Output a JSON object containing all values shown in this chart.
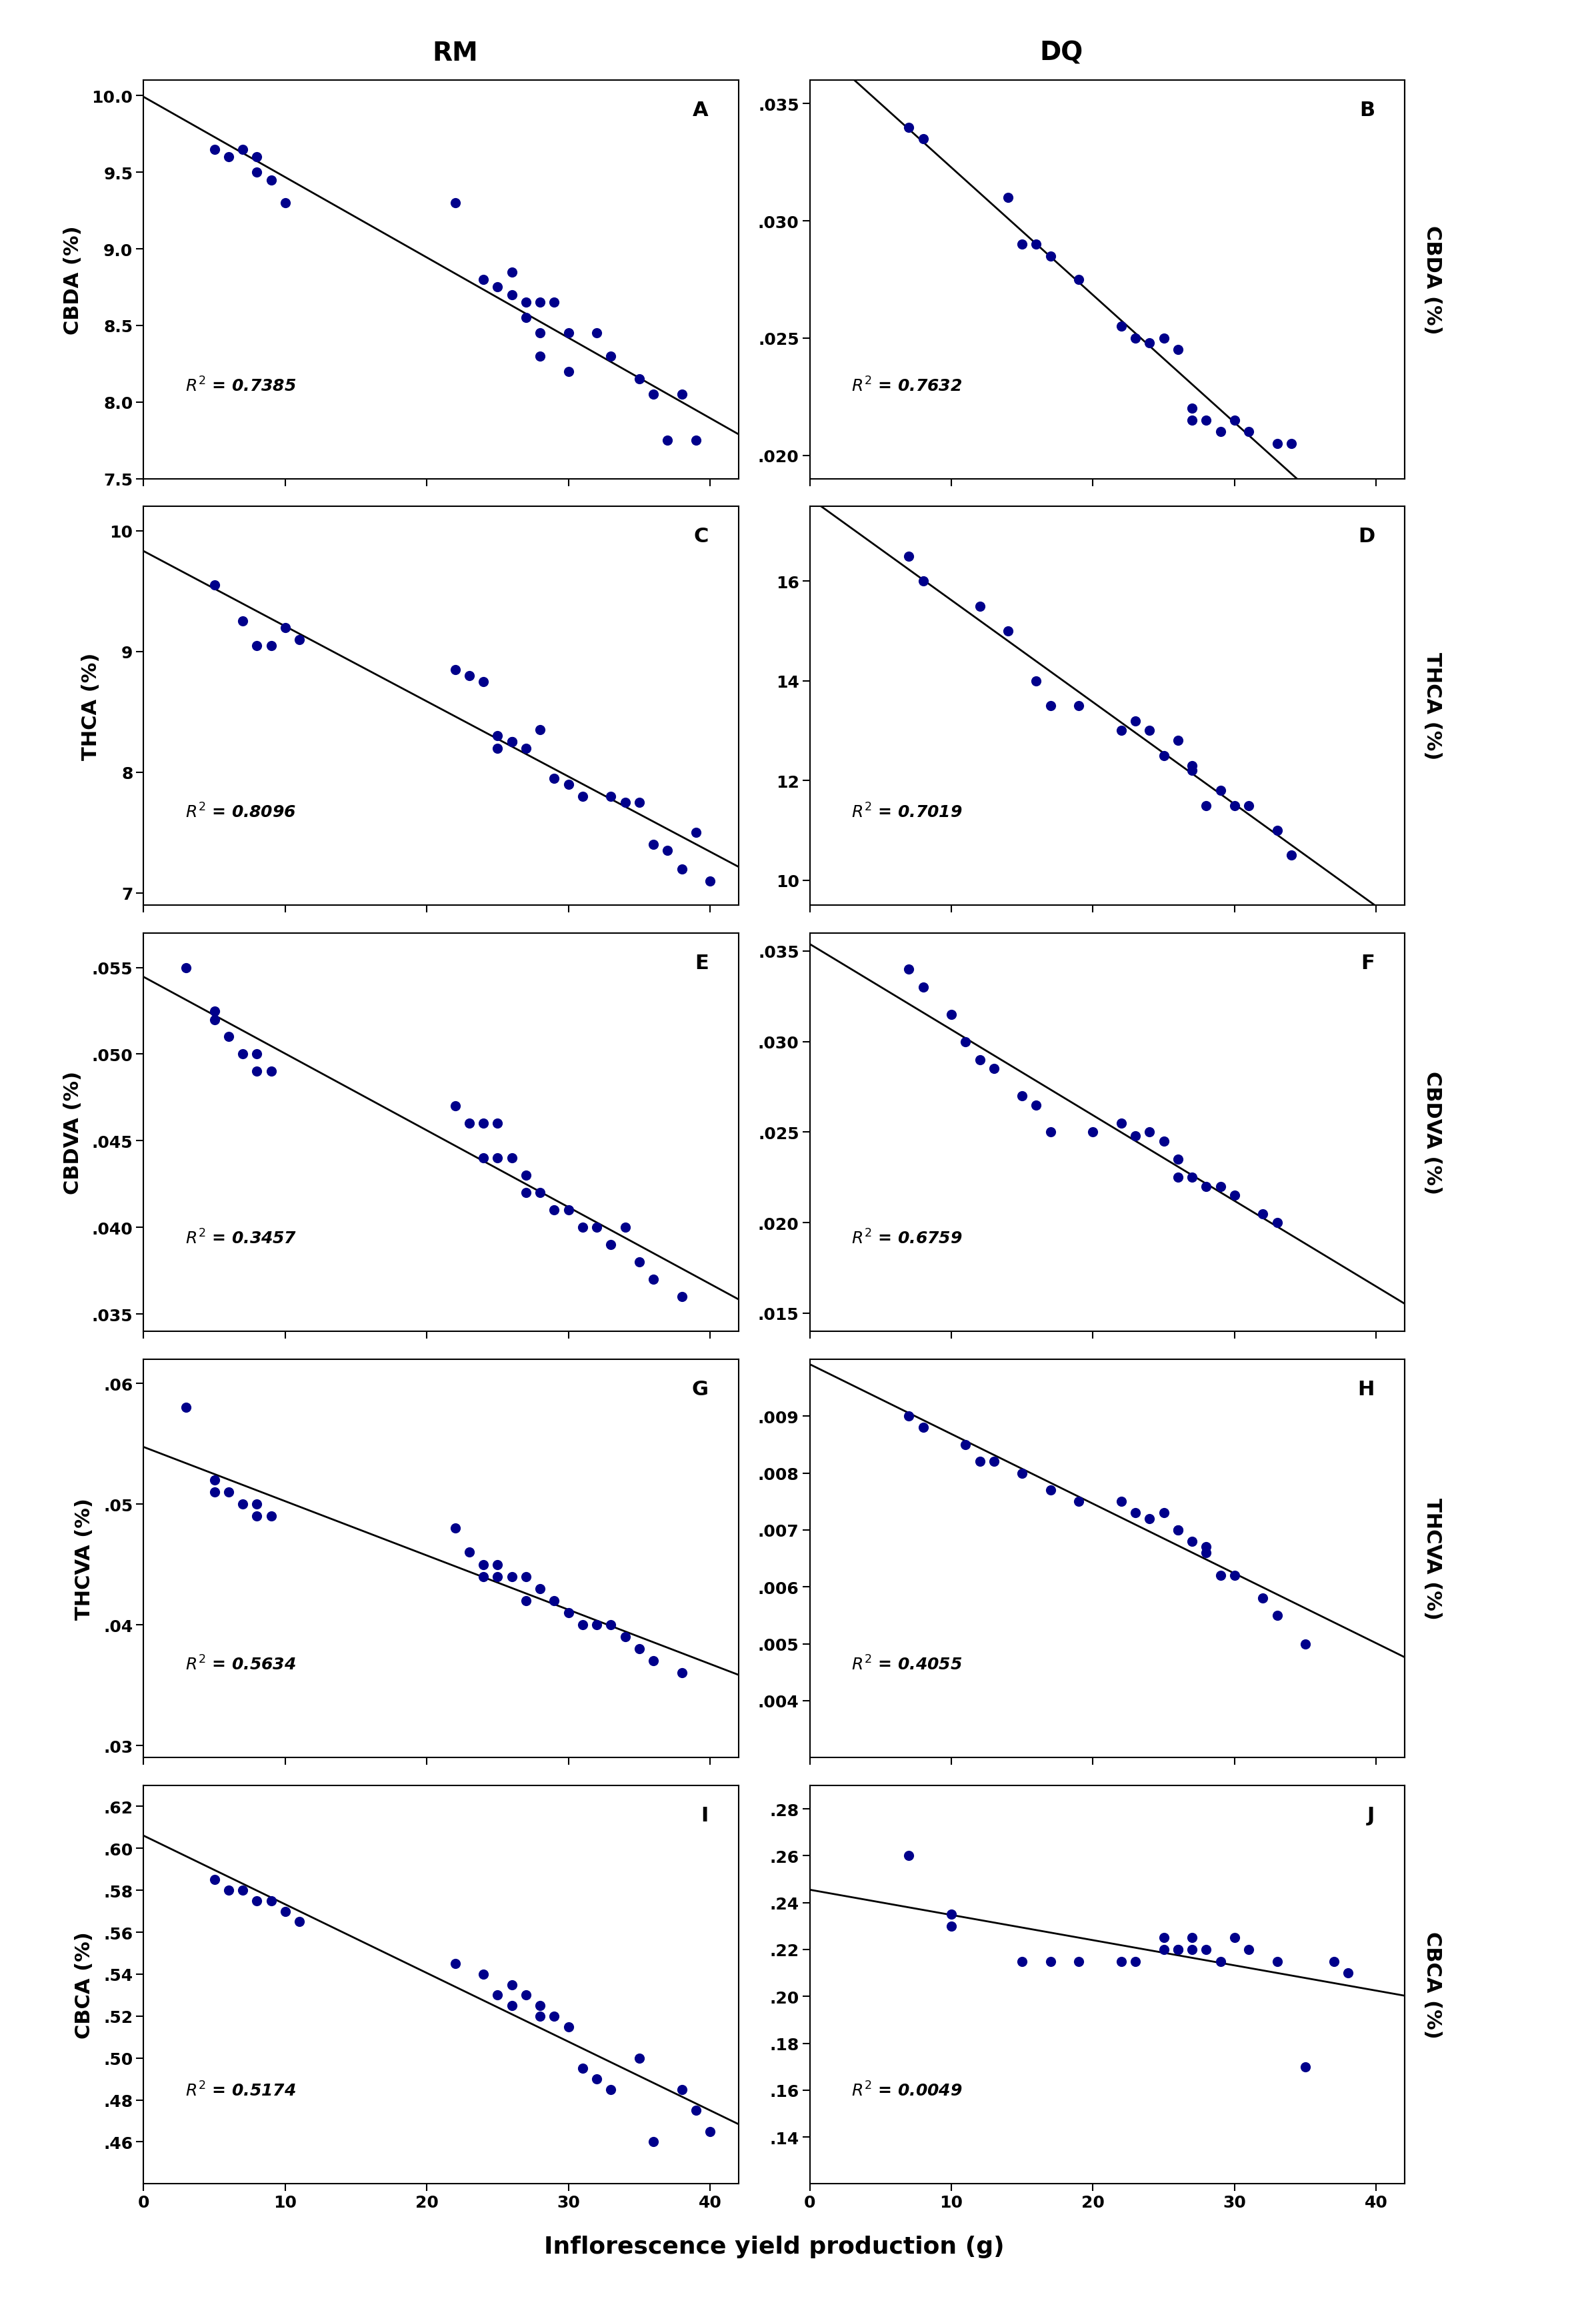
{
  "col_titles": [
    "RM",
    "DQ"
  ],
  "xlabel": "Inflorescence yield production (g)",
  "panel_labels": [
    "A",
    "B",
    "C",
    "D",
    "E",
    "F",
    "G",
    "H",
    "I",
    "J"
  ],
  "r2_values": [
    0.7385,
    0.7632,
    0.8096,
    0.7019,
    0.3457,
    0.6759,
    0.5634,
    0.4055,
    0.5174,
    0.0049
  ],
  "ylabels_left": [
    "CBDA (%)",
    "THCA (%)",
    "CBDVA (%)",
    "THCVA (%)",
    "CBCA (%)"
  ],
  "ylabels_right": [
    "CBDA (%)",
    "THCA (%)",
    "CBDVA (%)",
    "THCVA (%)",
    "CBCA (%)"
  ],
  "dot_color": "#00008B",
  "line_color": "#000000",
  "panels": {
    "A": {
      "x": [
        5,
        6,
        7,
        8,
        8,
        9,
        10,
        22,
        24,
        25,
        26,
        26,
        27,
        27,
        28,
        28,
        28,
        29,
        30,
        30,
        32,
        33,
        35,
        36,
        37,
        38,
        39
      ],
      "y": [
        9.65,
        9.6,
        9.65,
        9.6,
        9.5,
        9.45,
        9.3,
        9.3,
        8.8,
        8.75,
        8.85,
        8.7,
        8.65,
        8.55,
        8.65,
        8.45,
        8.3,
        8.65,
        8.45,
        8.2,
        8.45,
        8.3,
        8.15,
        8.05,
        7.75,
        8.05,
        7.75
      ],
      "xlim": [
        0,
        42
      ],
      "ylim": [
        7.5,
        10.1
      ],
      "yticks": [
        7.5,
        8.0,
        8.5,
        9.0,
        9.5,
        10.0
      ],
      "ytick_labels": [
        "7.5",
        "8.0",
        "8.5",
        "9.0",
        "9.5",
        "10.0"
      ],
      "xticks": [
        0,
        10,
        20,
        30,
        40
      ]
    },
    "B": {
      "x": [
        7,
        8,
        14,
        15,
        16,
        17,
        19,
        22,
        23,
        24,
        25,
        26,
        27,
        27,
        28,
        29,
        30,
        31,
        33,
        34
      ],
      "y": [
        0.034,
        0.0335,
        0.031,
        0.029,
        0.029,
        0.0285,
        0.0275,
        0.0255,
        0.025,
        0.0248,
        0.025,
        0.0245,
        0.0215,
        0.022,
        0.0215,
        0.021,
        0.0215,
        0.021,
        0.0205,
        0.0205
      ],
      "xlim": [
        0,
        42
      ],
      "ylim": [
        0.019,
        0.036
      ],
      "yticks": [
        0.02,
        0.025,
        0.03,
        0.035
      ],
      "ytick_labels": [
        ".020",
        ".025",
        ".030",
        ".035"
      ],
      "xticks": [
        0,
        10,
        20,
        30,
        40
      ]
    },
    "C": {
      "x": [
        5,
        7,
        8,
        9,
        10,
        11,
        22,
        23,
        24,
        25,
        25,
        26,
        26,
        27,
        28,
        29,
        30,
        31,
        33,
        34,
        35,
        36,
        37,
        38,
        39,
        40
      ],
      "y": [
        9.55,
        9.25,
        9.05,
        9.05,
        9.2,
        9.1,
        8.85,
        8.8,
        8.75,
        8.3,
        8.2,
        8.25,
        8.25,
        8.2,
        8.35,
        7.95,
        7.9,
        7.8,
        7.8,
        7.75,
        7.75,
        7.4,
        7.35,
        7.2,
        7.5,
        7.1
      ],
      "xlim": [
        0,
        42
      ],
      "ylim": [
        6.9,
        10.2
      ],
      "yticks": [
        7,
        8,
        9,
        10
      ],
      "ytick_labels": [
        "7",
        "8",
        "9",
        "10"
      ],
      "xticks": [
        0,
        10,
        20,
        30,
        40
      ]
    },
    "D": {
      "x": [
        7,
        8,
        12,
        14,
        16,
        17,
        19,
        22,
        23,
        24,
        25,
        26,
        27,
        27,
        28,
        29,
        30,
        31,
        33,
        34
      ],
      "y": [
        16.5,
        16.0,
        15.5,
        15.0,
        14.0,
        13.5,
        13.5,
        13.0,
        13.2,
        13.0,
        12.5,
        12.8,
        12.3,
        12.2,
        11.5,
        11.8,
        11.5,
        11.5,
        11.0,
        10.5
      ],
      "xlim": [
        0,
        42
      ],
      "ylim": [
        9.5,
        17.5
      ],
      "yticks": [
        10,
        12,
        14,
        16
      ],
      "ytick_labels": [
        "10",
        "12",
        "14",
        "16"
      ],
      "xticks": [
        0,
        10,
        20,
        30,
        40
      ]
    },
    "E": {
      "x": [
        3,
        5,
        5,
        6,
        7,
        8,
        8,
        9,
        22,
        23,
        24,
        24,
        25,
        25,
        26,
        27,
        27,
        28,
        29,
        30,
        31,
        32,
        33,
        34,
        35,
        36,
        38
      ],
      "y": [
        0.055,
        0.0525,
        0.052,
        0.051,
        0.05,
        0.05,
        0.049,
        0.049,
        0.047,
        0.046,
        0.046,
        0.044,
        0.046,
        0.044,
        0.044,
        0.043,
        0.042,
        0.042,
        0.041,
        0.041,
        0.04,
        0.04,
        0.039,
        0.04,
        0.038,
        0.037,
        0.036
      ],
      "xlim": [
        0,
        42
      ],
      "ylim": [
        0.034,
        0.057
      ],
      "yticks": [
        0.035,
        0.04,
        0.045,
        0.05,
        0.055
      ],
      "ytick_labels": [
        ".035",
        ".040",
        ".045",
        ".050",
        ".055"
      ],
      "xticks": [
        0,
        10,
        20,
        30,
        40
      ]
    },
    "F": {
      "x": [
        7,
        8,
        10,
        11,
        12,
        13,
        15,
        16,
        17,
        20,
        22,
        23,
        24,
        25,
        26,
        26,
        27,
        28,
        29,
        30,
        32,
        33
      ],
      "y": [
        0.034,
        0.033,
        0.0315,
        0.03,
        0.029,
        0.0285,
        0.027,
        0.0265,
        0.025,
        0.025,
        0.0255,
        0.0248,
        0.025,
        0.0245,
        0.0235,
        0.0225,
        0.0225,
        0.022,
        0.022,
        0.0215,
        0.0205,
        0.02
      ],
      "xlim": [
        0,
        42
      ],
      "ylim": [
        0.014,
        0.036
      ],
      "yticks": [
        0.015,
        0.02,
        0.025,
        0.03,
        0.035
      ],
      "ytick_labels": [
        ".015",
        ".020",
        ".025",
        ".030",
        ".035"
      ],
      "xticks": [
        0,
        10,
        20,
        30,
        40
      ]
    },
    "G": {
      "x": [
        3,
        5,
        5,
        6,
        7,
        8,
        8,
        9,
        22,
        23,
        24,
        24,
        25,
        25,
        26,
        27,
        27,
        28,
        29,
        30,
        31,
        32,
        33,
        34,
        35,
        36,
        38
      ],
      "y": [
        0.058,
        0.052,
        0.051,
        0.051,
        0.05,
        0.05,
        0.049,
        0.049,
        0.048,
        0.046,
        0.045,
        0.044,
        0.045,
        0.044,
        0.044,
        0.044,
        0.042,
        0.043,
        0.042,
        0.041,
        0.04,
        0.04,
        0.04,
        0.039,
        0.038,
        0.037,
        0.036
      ],
      "xlim": [
        0,
        42
      ],
      "ylim": [
        0.029,
        0.062
      ],
      "yticks": [
        0.03,
        0.04,
        0.05,
        0.06
      ],
      "ytick_labels": [
        ".03",
        ".04",
        ".05",
        ".06"
      ],
      "xticks": [
        0,
        10,
        20,
        30,
        40
      ]
    },
    "H": {
      "x": [
        7,
        8,
        11,
        12,
        13,
        15,
        17,
        19,
        22,
        23,
        24,
        25,
        26,
        26,
        27,
        28,
        28,
        29,
        30,
        32,
        33,
        35
      ],
      "y": [
        0.009,
        0.0088,
        0.0085,
        0.0082,
        0.0082,
        0.008,
        0.0077,
        0.0075,
        0.0075,
        0.0073,
        0.0072,
        0.0073,
        0.007,
        0.007,
        0.0068,
        0.0067,
        0.0066,
        0.0062,
        0.0062,
        0.0058,
        0.0055,
        0.005
      ],
      "xlim": [
        0,
        42
      ],
      "ylim": [
        0.003,
        0.01
      ],
      "yticks": [
        0.004,
        0.005,
        0.006,
        0.007,
        0.008,
        0.009
      ],
      "ytick_labels": [
        ".004",
        ".005",
        ".006",
        ".007",
        ".008",
        ".009"
      ],
      "xticks": [
        0,
        10,
        20,
        30,
        40
      ]
    },
    "I": {
      "x": [
        5,
        6,
        7,
        8,
        9,
        10,
        11,
        22,
        24,
        25,
        26,
        26,
        27,
        28,
        28,
        29,
        30,
        31,
        32,
        33,
        35,
        36,
        38,
        39,
        40
      ],
      "y": [
        0.585,
        0.58,
        0.58,
        0.575,
        0.575,
        0.57,
        0.565,
        0.545,
        0.54,
        0.53,
        0.535,
        0.525,
        0.53,
        0.52,
        0.525,
        0.52,
        0.515,
        0.495,
        0.49,
        0.485,
        0.5,
        0.46,
        0.485,
        0.475,
        0.465
      ],
      "xlim": [
        0,
        42
      ],
      "ylim": [
        0.44,
        0.63
      ],
      "yticks": [
        0.46,
        0.48,
        0.5,
        0.52,
        0.54,
        0.56,
        0.58,
        0.6,
        0.62
      ],
      "ytick_labels": [
        ".46",
        ".48",
        ".50",
        ".52",
        ".54",
        ".56",
        ".58",
        ".60",
        ".62"
      ],
      "xticks": [
        0,
        10,
        20,
        30,
        40
      ]
    },
    "J": {
      "x": [
        7,
        10,
        10,
        15,
        17,
        19,
        22,
        23,
        25,
        25,
        26,
        26,
        27,
        27,
        28,
        29,
        30,
        31,
        33,
        35,
        37,
        38
      ],
      "y": [
        0.26,
        0.23,
        0.235,
        0.215,
        0.215,
        0.215,
        0.215,
        0.215,
        0.225,
        0.22,
        0.22,
        0.22,
        0.225,
        0.22,
        0.22,
        0.215,
        0.225,
        0.22,
        0.215,
        0.17,
        0.215,
        0.21
      ],
      "xlim": [
        0,
        42
      ],
      "ylim": [
        0.12,
        0.29
      ],
      "yticks": [
        0.14,
        0.16,
        0.18,
        0.2,
        0.22,
        0.24,
        0.26,
        0.28
      ],
      "ytick_labels": [
        ".14",
        ".16",
        ".18",
        ".20",
        ".22",
        ".24",
        ".26",
        ".28"
      ],
      "xticks": [
        0,
        10,
        20,
        30,
        40
      ]
    }
  }
}
